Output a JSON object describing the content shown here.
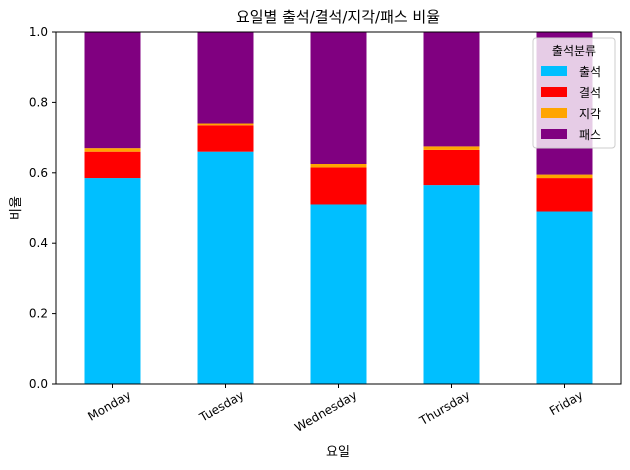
{
  "chart_data": {
    "type": "bar",
    "stacked": true,
    "title": "요일별 출석/결석/지각/패스 비율",
    "xlabel": "요일",
    "ylabel": "비율",
    "ylim": [
      0,
      1.0
    ],
    "yticks": [
      0.0,
      0.2,
      0.4,
      0.6,
      0.8,
      1.0
    ],
    "ytick_labels": [
      "0.0",
      "0.2",
      "0.4",
      "0.6",
      "0.8",
      "1.0"
    ],
    "grid": false,
    "legend": {
      "title": "출석분류",
      "placement": "top-right"
    },
    "categories": [
      "Monday",
      "Tuesday",
      "Wednesday",
      "Thursday",
      "Friday"
    ],
    "series": [
      {
        "name": "출석",
        "color": "#00bfff",
        "values": [
          0.585,
          0.66,
          0.51,
          0.565,
          0.49
        ]
      },
      {
        "name": "결석",
        "color": "#ff0000",
        "values": [
          0.075,
          0.075,
          0.105,
          0.1,
          0.095
        ]
      },
      {
        "name": "지각",
        "color": "#ffa500",
        "values": [
          0.01,
          0.005,
          0.01,
          0.01,
          0.01
        ]
      },
      {
        "name": "패스",
        "color": "#800080",
        "values": [
          0.33,
          0.26,
          0.375,
          0.325,
          0.405
        ]
      }
    ]
  }
}
